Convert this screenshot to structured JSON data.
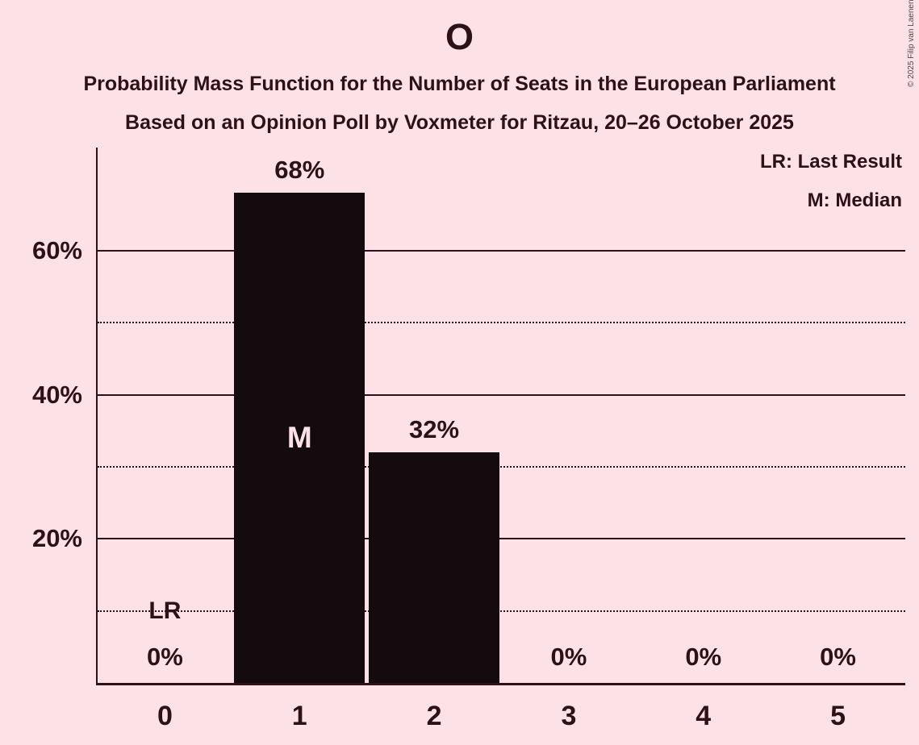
{
  "title": "O",
  "subtitles": [
    "Probability Mass Function for the Number of Seats in the European Parliament",
    "Based on an Opinion Poll by Voxmeter for Ritzau, 20–26 October 2025"
  ],
  "legend": {
    "lr": "LR: Last Result",
    "m": "M: Median"
  },
  "copyright": "© 2025 Filip van Laenen",
  "colors": {
    "background": "#fce2e7",
    "bar": "#130b0e",
    "text": "#2e1019",
    "median_label": "#fce2e7",
    "copyright": "#55454a"
  },
  "chart_data": {
    "type": "bar",
    "title": "O",
    "categories": [
      "0",
      "1",
      "2",
      "3",
      "4",
      "5"
    ],
    "values": [
      0,
      68,
      32,
      0,
      0,
      0
    ],
    "value_labels": [
      "0%",
      "68%",
      "32%",
      "0%",
      "0%",
      "0%"
    ],
    "xlabel": "",
    "ylabel": "",
    "unit": "percent",
    "ylim": [
      0,
      74.3
    ],
    "y_ticks": [
      {
        "value": 20,
        "label": "20%"
      },
      {
        "value": 40,
        "label": "40%"
      },
      {
        "value": 60,
        "label": "60%"
      }
    ],
    "solid_gridlines": [
      20,
      40,
      60
    ],
    "dotted_gridlines": [
      10,
      30,
      50
    ],
    "grid": true,
    "legend_position": "top-right",
    "annotations": {
      "last_result": {
        "category": "0",
        "label": "LR",
        "y_value": 10
      },
      "median": {
        "category": "1",
        "label": "M"
      }
    }
  }
}
